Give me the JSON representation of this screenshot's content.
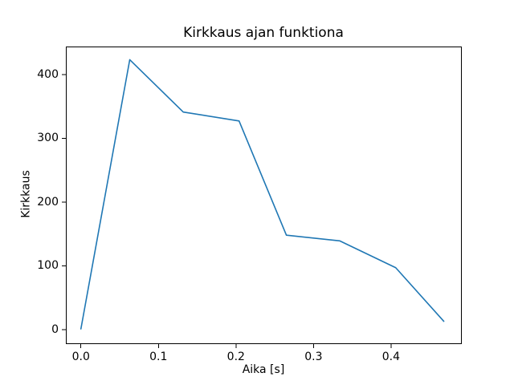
{
  "chart_data": {
    "type": "line",
    "title": "Kirkkaus ajan funktiona",
    "xlabel": "Aika [s]",
    "ylabel": "Kirkkaus",
    "x": [
      0.0,
      0.063,
      0.132,
      0.204,
      0.265,
      0.334,
      0.406,
      0.468
    ],
    "y": [
      1,
      423,
      341,
      327,
      148,
      139,
      97,
      13
    ],
    "xlim": [
      -0.0194,
      0.4902
    ],
    "ylim": [
      -21.5,
      443.7
    ],
    "xticks": [
      0.0,
      0.1,
      0.2,
      0.3,
      0.4
    ],
    "xtick_labels": [
      "0.0",
      "0.1",
      "0.2",
      "0.3",
      "0.4"
    ],
    "yticks": [
      0,
      100,
      200,
      300,
      400
    ],
    "ytick_labels": [
      "0",
      "100",
      "200",
      "300",
      "400"
    ],
    "grid": false,
    "legend": null,
    "line_color": "#1f77b4",
    "axis_color": "#000000",
    "background_color": "#ffffff"
  }
}
